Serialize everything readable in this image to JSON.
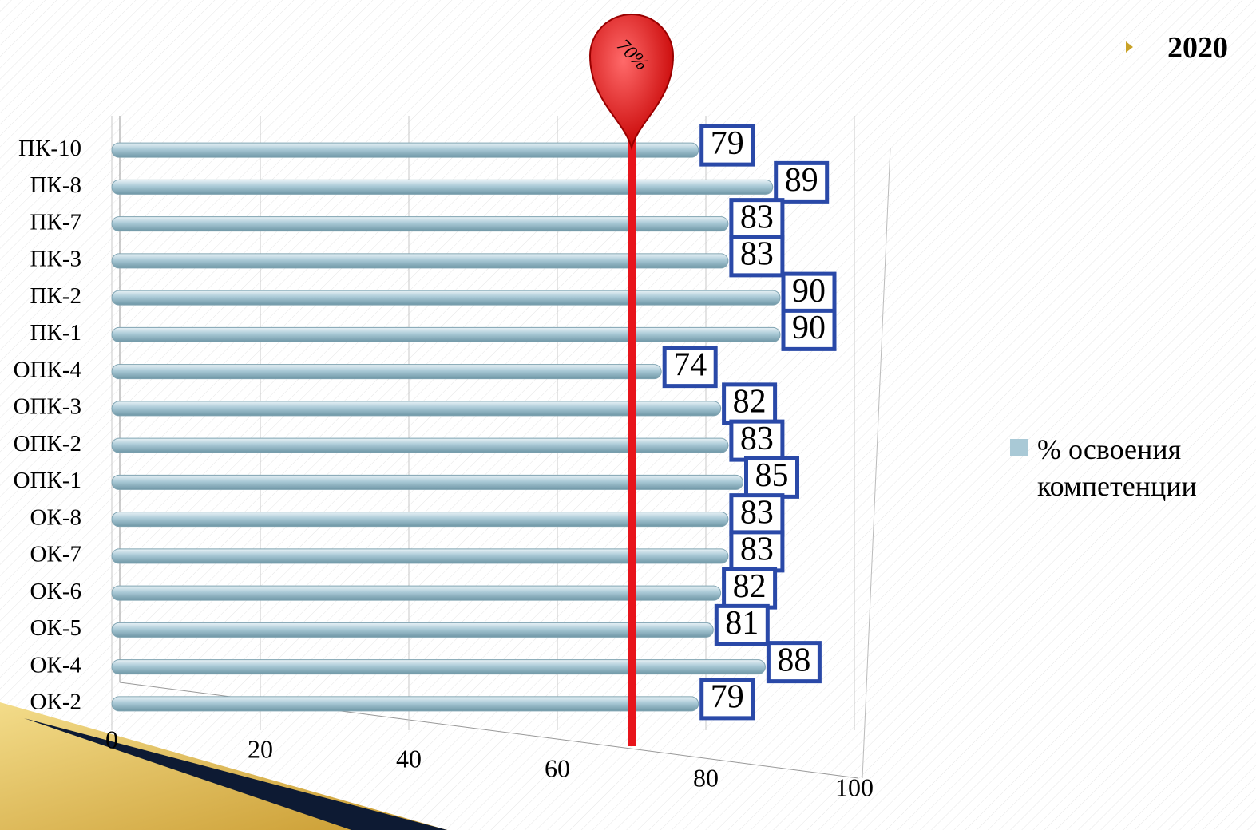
{
  "chart_data": {
    "type": "bar",
    "orientation": "horizontal",
    "heading": "2020",
    "categories": [
      "ПК-10",
      "ПК-8",
      "ПК-7",
      "ПК-3",
      "ПК-2",
      "ПК-1",
      "ОПК-4",
      "ОПК-3",
      "ОПК-2",
      "ОПК-1",
      "ОК-8",
      "ОК-7",
      "ОК-6",
      "ОК-5",
      "ОК-4",
      "ОК-2"
    ],
    "series": [
      {
        "name": "% освоения компетенции",
        "color": "#a9c9d6",
        "values": [
          79,
          89,
          83,
          83,
          90,
          90,
          74,
          82,
          83,
          85,
          83,
          83,
          82,
          81,
          88,
          79
        ]
      }
    ],
    "xlim": [
      0,
      100
    ],
    "xticks": [
      0,
      20,
      40,
      60,
      80,
      100
    ],
    "threshold": {
      "value": 70,
      "label": "70%",
      "color": "#e8141b"
    },
    "legend": "right"
  }
}
